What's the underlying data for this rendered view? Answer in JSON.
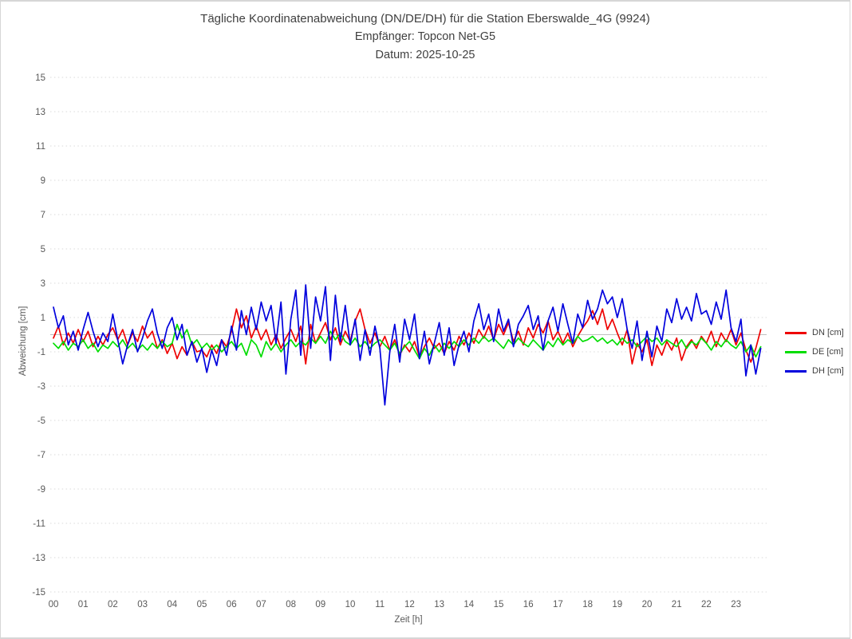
{
  "page": {
    "background": "#ffffff",
    "border_color": "#d6d6d6"
  },
  "chart_data": {
    "type": "line",
    "title": "Tägliche Koordinatenabweichung (DN/DE/DH) für die Station Eberswalde_4G (9924)",
    "subtitle": "Empfänger: Topcon Net-G5",
    "date_line": "Datum: 2025-10-25",
    "xlabel": "Zeit [h]",
    "ylabel": "Abweichung [cm]",
    "xlim": [
      0,
      24
    ],
    "ylim": [
      -15,
      15
    ],
    "grid": "horizontal-dotted",
    "grid_color": "#d9d9d9",
    "zero_line": true,
    "zero_line_color": "#bfbfbf",
    "tick_color": "#595959",
    "legend_position": "right-center",
    "xticks": [
      "00",
      "01",
      "02",
      "03",
      "04",
      "05",
      "06",
      "07",
      "08",
      "09",
      "10",
      "11",
      "12",
      "13",
      "14",
      "15",
      "16",
      "17",
      "18",
      "19",
      "20",
      "21",
      "22",
      "23"
    ],
    "yticks": [
      15,
      13,
      11,
      9,
      7,
      5,
      3,
      1,
      -1,
      -3,
      -5,
      -7,
      -9,
      -11,
      -13,
      -15
    ],
    "points_per_hour": 6,
    "series": [
      {
        "name": "DN [cm]",
        "color": "#ee0000",
        "values": [
          -0.2,
          0.5,
          -0.6,
          0.1,
          -0.5,
          0.3,
          -0.4,
          0.2,
          -0.7,
          -0.1,
          -0.6,
          0.0,
          0.4,
          -0.3,
          0.3,
          -0.6,
          0.1,
          -0.4,
          0.5,
          -0.2,
          0.2,
          -0.8,
          -0.3,
          -1.1,
          -0.5,
          -1.4,
          -0.7,
          -1.2,
          -0.4,
          -1.0,
          -0.9,
          -1.3,
          -0.6,
          -1.1,
          -0.3,
          -0.7,
          0.2,
          1.5,
          0.4,
          1.1,
          -0.2,
          0.5,
          -0.3,
          0.3,
          -0.6,
          0.0,
          -0.8,
          -0.2,
          0.3,
          -0.4,
          0.5,
          -1.7,
          0.6,
          -0.5,
          0.1,
          0.7,
          -0.3,
          0.4,
          -0.6,
          0.2,
          -0.4,
          0.8,
          1.5,
          0.3,
          -0.5,
          0.1,
          -0.7,
          -0.1,
          -0.9,
          -0.3,
          -1.2,
          -0.6,
          -1.0,
          -0.4,
          -1.3,
          -0.7,
          -0.2,
          -0.8,
          -0.5,
          -1.1,
          -0.4,
          -0.9,
          -0.1,
          -0.6,
          0.1,
          -0.5,
          0.3,
          -0.2,
          0.5,
          -0.3,
          0.6,
          0.0,
          0.7,
          -0.4,
          0.2,
          -0.6,
          0.4,
          -0.2,
          0.6,
          0.1,
          0.8,
          -0.3,
          0.2,
          -0.5,
          0.1,
          -0.7,
          -0.1,
          0.4,
          0.8,
          1.4,
          0.6,
          1.5,
          0.3,
          0.9,
          0.1,
          -0.6,
          0.3,
          -1.7,
          -0.5,
          -1.0,
          -0.3,
          -1.8,
          -0.6,
          -1.2,
          -0.4,
          -0.9,
          -0.2,
          -1.5,
          -0.7,
          -0.3,
          -0.8,
          -0.1,
          -0.5,
          0.2,
          -0.7,
          0.1,
          -0.4,
          0.3,
          -0.6,
          0.1,
          -0.9,
          -1.6,
          -0.8,
          0.3
        ]
      },
      {
        "name": "DE [cm]",
        "color": "#00dd00",
        "values": [
          -0.5,
          -0.8,
          -0.4,
          -0.9,
          -0.5,
          -0.7,
          -0.3,
          -0.8,
          -0.5,
          -1.0,
          -0.6,
          -0.8,
          -0.4,
          -0.7,
          -0.3,
          -0.8,
          -0.5,
          -0.9,
          -0.6,
          -0.9,
          -0.5,
          -0.8,
          -0.4,
          -0.7,
          -0.5,
          0.6,
          -0.2,
          0.3,
          -0.6,
          -0.3,
          -0.8,
          -0.5,
          -0.9,
          -0.6,
          -1.0,
          -0.7,
          -0.4,
          -0.8,
          -0.5,
          -1.2,
          -0.3,
          -0.6,
          -1.3,
          -0.4,
          -0.9,
          -0.5,
          -1.0,
          -0.6,
          -0.3,
          -0.7,
          -0.4,
          -0.6,
          -0.2,
          -0.5,
          -0.1,
          -0.5,
          0.2,
          -0.3,
          0.1,
          -0.4,
          -0.6,
          -0.2,
          -0.7,
          -0.4,
          -0.8,
          -0.5,
          -0.3,
          -0.6,
          -0.9,
          -0.5,
          -1.1,
          -0.7,
          -0.4,
          -0.9,
          -1.4,
          -0.8,
          -1.2,
          -0.6,
          -1.0,
          -0.5,
          -0.8,
          -0.4,
          -0.7,
          -0.3,
          -0.6,
          -0.2,
          -0.5,
          -0.1,
          -0.4,
          -0.2,
          -0.5,
          -0.8,
          -0.3,
          -0.6,
          -0.2,
          -0.5,
          -0.7,
          -0.3,
          -0.6,
          -0.9,
          -0.4,
          -0.7,
          -0.2,
          -0.6,
          -0.3,
          -0.5,
          -0.1,
          -0.4,
          -0.3,
          -0.1,
          -0.4,
          -0.2,
          -0.5,
          -0.3,
          -0.6,
          -0.2,
          -0.5,
          -0.3,
          -0.7,
          -0.4,
          -0.1,
          -0.4,
          -0.2,
          -0.6,
          -0.3,
          -0.5,
          -0.7,
          -0.3,
          -0.8,
          -0.4,
          -0.6,
          -0.2,
          -0.5,
          -0.9,
          -0.4,
          -0.7,
          -0.3,
          -0.6,
          -0.8,
          -0.4,
          -1.0,
          -0.6,
          -1.3,
          -0.7
        ]
      },
      {
        "name": "DH [cm]",
        "color": "#0000dd",
        "values": [
          1.6,
          0.4,
          1.1,
          -0.6,
          0.2,
          -0.9,
          0.3,
          1.3,
          0.2,
          -0.7,
          0.1,
          -0.4,
          1.2,
          -0.3,
          -1.7,
          -0.6,
          0.3,
          -1.0,
          -0.2,
          0.8,
          1.5,
          0.1,
          -0.8,
          0.4,
          1.0,
          -0.3,
          0.6,
          -1.2,
          -0.4,
          -1.6,
          -0.8,
          -2.2,
          -0.9,
          -1.8,
          -0.3,
          -1.2,
          0.5,
          -0.9,
          1.4,
          0.0,
          1.6,
          0.3,
          1.9,
          0.8,
          1.7,
          -0.5,
          1.9,
          -2.3,
          0.9,
          2.6,
          -1.2,
          2.9,
          -0.8,
          2.2,
          0.8,
          2.8,
          -1.5,
          2.3,
          -0.4,
          1.7,
          -0.6,
          0.9,
          -1.5,
          0.3,
          -1.2,
          0.5,
          -0.8,
          -4.1,
          -1.0,
          0.6,
          -1.6,
          0.9,
          -0.3,
          1.2,
          -1.4,
          0.2,
          -1.7,
          -0.5,
          0.7,
          -1.2,
          0.4,
          -1.8,
          -0.6,
          0.2,
          -1.0,
          0.8,
          1.8,
          0.3,
          1.2,
          -0.4,
          1.5,
          0.2,
          0.9,
          -0.7,
          0.6,
          1.1,
          1.7,
          0.3,
          1.1,
          -0.9,
          0.8,
          1.6,
          0.2,
          1.8,
          0.6,
          -0.5,
          1.2,
          0.4,
          2.0,
          0.9,
          1.5,
          2.6,
          1.8,
          2.2,
          1.0,
          2.1,
          0.3,
          -0.8,
          0.8,
          -1.5,
          0.2,
          -1.3,
          0.5,
          -0.4,
          1.5,
          0.7,
          2.1,
          0.9,
          1.6,
          0.8,
          2.4,
          1.2,
          1.4,
          0.6,
          1.9,
          0.9,
          2.6,
          0.4,
          -0.4,
          0.9,
          -2.4,
          -0.6,
          -2.3,
          -0.8
        ]
      }
    ]
  }
}
